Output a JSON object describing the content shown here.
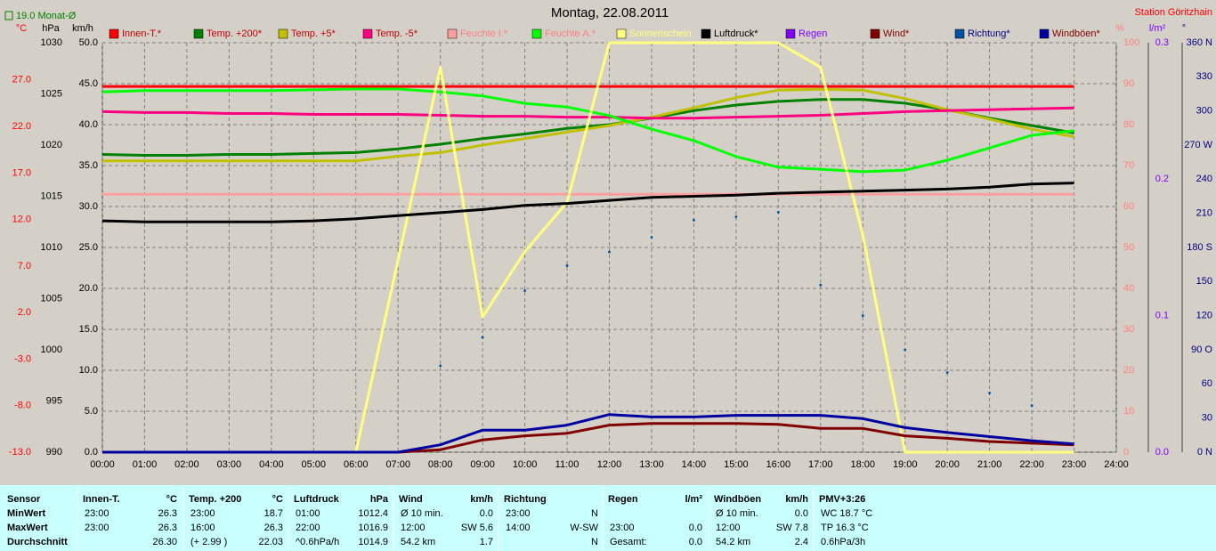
{
  "chart_data": {
    "type": "line",
    "title": "Montag, 22.08.2011",
    "annotation": "19.0 Monat-Ø",
    "station": "Station Göritzhain",
    "x": [
      0,
      1,
      2,
      3,
      4,
      5,
      6,
      7,
      8,
      9,
      10,
      11,
      12,
      13,
      14,
      15,
      16,
      17,
      18,
      19,
      20,
      21,
      22,
      23
    ],
    "xlim": [
      0,
      24
    ],
    "xticks": [
      {
        "value": 0,
        "label": "00:00"
      },
      {
        "value": 1,
        "label": "01:00"
      },
      {
        "value": 2,
        "label": "02:00"
      },
      {
        "value": 3,
        "label": "03:00"
      },
      {
        "value": 4,
        "label": "04:00"
      },
      {
        "value": 5,
        "label": "05:00"
      },
      {
        "value": 6,
        "label": "06:00"
      },
      {
        "value": 7,
        "label": "07:00"
      },
      {
        "value": 8,
        "label": "08:00"
      },
      {
        "value": 9,
        "label": "09:00"
      },
      {
        "value": 10,
        "label": "10:00"
      },
      {
        "value": 11,
        "label": "11:00"
      },
      {
        "value": 12,
        "label": "12:00"
      },
      {
        "value": 13,
        "label": "13:00"
      },
      {
        "value": 14,
        "label": "14:00"
      },
      {
        "value": 15,
        "label": "15:00"
      },
      {
        "value": 16,
        "label": "16:00"
      },
      {
        "value": 17,
        "label": "17:00"
      },
      {
        "value": 18,
        "label": "18:00"
      },
      {
        "value": 19,
        "label": "19:00"
      },
      {
        "value": 20,
        "label": "20:00"
      },
      {
        "value": 21,
        "label": "21:00"
      },
      {
        "value": 22,
        "label": "22:00"
      },
      {
        "value": 23,
        "label": "23:00"
      },
      {
        "value": 24,
        "label": "24:00"
      }
    ],
    "grid": true,
    "axes": [
      {
        "unit": "°C",
        "color": "#ff0000",
        "lim": [
          -13,
          31
        ],
        "ticks": [
          {
            "value": -13,
            "label": "-13.0"
          },
          {
            "value": -8,
            "label": "-8.0"
          },
          {
            "value": -3,
            "label": "-3.0"
          },
          {
            "value": 2,
            "label": "2.0"
          },
          {
            "value": 7,
            "label": "7.0"
          },
          {
            "value": 12,
            "label": "12.0"
          },
          {
            "value": 17,
            "label": "17.0"
          },
          {
            "value": 22,
            "label": "22.0"
          },
          {
            "value": 27,
            "label": "27.0"
          }
        ]
      },
      {
        "unit": "hPa",
        "color": "#000000",
        "lim": [
          990,
          1030
        ],
        "ticks": [
          990,
          995,
          1000,
          1005,
          1010,
          1015,
          1020,
          1025,
          1030
        ]
      },
      {
        "unit": "km/h",
        "color": "#000000",
        "lim": [
          0,
          50
        ],
        "grid": true,
        "ticks": [
          {
            "value": 0,
            "label": "0.0"
          },
          {
            "value": 5,
            "label": "5.0"
          },
          {
            "value": 10,
            "label": "10.0"
          },
          {
            "value": 15,
            "label": "15.0"
          },
          {
            "value": 20,
            "label": "20.0"
          },
          {
            "value": 25,
            "label": "25.0"
          },
          {
            "value": 30,
            "label": "30.0"
          },
          {
            "value": 35,
            "label": "35.0"
          },
          {
            "value": 40,
            "label": "40.0"
          },
          {
            "value": 45,
            "label": "45.0"
          },
          {
            "value": 50,
            "label": "50.0"
          }
        ]
      },
      {
        "unit": "%",
        "color": "#ff8080",
        "lim": [
          0,
          100
        ],
        "ticks": [
          0,
          10,
          20,
          30,
          40,
          50,
          60,
          70,
          80,
          90,
          100
        ]
      },
      {
        "unit": "l/m²",
        "color": "#8000ff",
        "lim": [
          0,
          0.3
        ],
        "ticks": [
          {
            "value": 0,
            "label": "0.0"
          },
          0.1,
          0.2,
          0.3
        ]
      },
      {
        "unit": "°",
        "color": "#000080",
        "lim": [
          0,
          360
        ],
        "ticks": [
          {
            "value": 0,
            "label": "0 N"
          },
          30,
          60,
          {
            "value": 90,
            "label": "90 O"
          },
          120,
          150,
          {
            "value": 180,
            "label": "180 S"
          },
          210,
          240,
          {
            "value": 270,
            "label": "270 W"
          },
          300,
          330,
          {
            "value": 360,
            "label": "360 N"
          }
        ]
      }
    ],
    "series": [
      {
        "name": "Innen-T.*",
        "color": "#ff0000",
        "label_color": "#c00000",
        "axis": "°C",
        "values": [
          26.3,
          26.3,
          26.3,
          26.3,
          26.3,
          26.3,
          26.3,
          26.3,
          26.3,
          26.3,
          26.3,
          26.3,
          26.3,
          26.3,
          26.3,
          26.3,
          26.3,
          26.3,
          26.3,
          26.3,
          26.3,
          26.3,
          26.3,
          26.3
        ]
      },
      {
        "name": "Temp. +200*",
        "color": "#008000",
        "label_color": "#c00000",
        "axis": "°C",
        "values": [
          19.0,
          18.9,
          18.9,
          19.0,
          19.0,
          19.1,
          19.2,
          19.6,
          20.1,
          20.7,
          21.2,
          21.8,
          22.2,
          22.9,
          23.7,
          24.3,
          24.7,
          24.9,
          24.9,
          24.5,
          23.8,
          22.9,
          22.1,
          21.3
        ]
      },
      {
        "name": "Temp. +5*",
        "color": "#c0c000",
        "label_color": "#c00000",
        "axis": "°C",
        "values": [
          18.3,
          18.3,
          18.3,
          18.3,
          18.3,
          18.3,
          18.3,
          18.8,
          19.2,
          20.0,
          20.7,
          21.4,
          22.1,
          23.0,
          24.0,
          25.1,
          25.9,
          26.0,
          25.9,
          25.0,
          23.8,
          22.8,
          21.7,
          20.9
        ]
      },
      {
        "name": "Temp. -5*",
        "color": "#ff0080",
        "label_color": "#c00000",
        "axis": "°C",
        "values": [
          23.6,
          23.5,
          23.5,
          23.4,
          23.4,
          23.3,
          23.3,
          23.3,
          23.2,
          23.1,
          23.1,
          23.0,
          23.0,
          22.9,
          22.9,
          23.0,
          23.1,
          23.2,
          23.4,
          23.6,
          23.7,
          23.8,
          23.9,
          24.0
        ]
      },
      {
        "name": "Feuchte I.*",
        "color": "#ffa0a0",
        "label_color": "#ff8080",
        "axis": "%",
        "values": [
          63,
          63,
          63,
          63,
          63,
          63,
          63,
          63,
          63,
          63,
          63,
          63,
          63,
          63,
          63,
          63,
          63,
          63,
          63,
          63,
          63,
          63,
          63,
          63
        ]
      },
      {
        "name": "Feuchte A.*",
        "color": "#00ff00",
        "label_color": "#ff8080",
        "axis": "%",
        "values": [
          88.0,
          88.3,
          88.3,
          88.3,
          88.3,
          88.5,
          88.7,
          88.7,
          88.0,
          87.0,
          85.2,
          84.3,
          82.2,
          78.9,
          76.1,
          72.2,
          69.6,
          69.1,
          68.5,
          68.9,
          71.3,
          74.3,
          77.4,
          78.5
        ]
      },
      {
        "name": "Sonnenschein",
        "color": "#ffff80",
        "label_color": "#ffff80",
        "axis": "%",
        "values": [
          0,
          0,
          0,
          0,
          0,
          0,
          0,
          47,
          94,
          33,
          49,
          61,
          100,
          100,
          100,
          100,
          100,
          94,
          53,
          0,
          0,
          0,
          0,
          0
        ]
      },
      {
        "name": "Luftdruck*",
        "color": "#000000",
        "label_color": "#000000",
        "axis": "hPa",
        "values": [
          1012.6,
          1012.5,
          1012.5,
          1012.5,
          1012.5,
          1012.6,
          1012.8,
          1013.1,
          1013.4,
          1013.7,
          1014.1,
          1014.3,
          1014.6,
          1014.9,
          1015.0,
          1015.1,
          1015.3,
          1015.4,
          1015.5,
          1015.6,
          1015.7,
          1015.9,
          1016.2,
          1016.3
        ]
      },
      {
        "name": "Regen",
        "color": "#8000ff",
        "label_color": "#8000ff",
        "axis": "l/m²",
        "values": [
          null,
          null,
          null,
          null,
          null,
          null,
          null,
          null,
          null,
          null,
          null,
          null,
          null,
          null,
          null,
          null,
          null,
          null,
          null,
          null,
          null,
          null,
          null,
          null
        ]
      },
      {
        "name": "Wind*",
        "color": "#800000",
        "label_color": "#800000",
        "axis": "km/h",
        "values": [
          0,
          0,
          0,
          0,
          0,
          0,
          0,
          0,
          0.3,
          1.5,
          2.0,
          2.3,
          3.3,
          3.5,
          3.5,
          3.5,
          3.4,
          2.9,
          2.9,
          2.0,
          1.7,
          1.3,
          1.1,
          0.9
        ]
      },
      {
        "name": "Richtung*",
        "color": "#0050a0",
        "label_color": "#000080",
        "axis": "°",
        "style": "dots",
        "values": [
          null,
          null,
          null,
          null,
          null,
          null,
          null,
          null,
          76,
          101,
          142,
          164,
          176,
          189,
          204,
          207,
          211,
          147,
          120,
          90,
          70,
          52,
          41,
          null
        ]
      },
      {
        "name": "Windböen*",
        "color": "#0000a0",
        "label_color": "#800000",
        "axis": "km/h",
        "values": [
          0,
          0,
          0,
          0,
          0,
          0,
          0,
          0,
          0.9,
          2.7,
          2.7,
          3.3,
          4.6,
          4.3,
          4.3,
          4.5,
          4.5,
          4.5,
          4.1,
          3.0,
          2.4,
          1.9,
          1.4,
          1.0
        ]
      }
    ]
  },
  "table": {
    "row_labels": [
      "Sensor",
      "MinWert",
      "MaxWert",
      "Durchschnitt"
    ],
    "columns": [
      {
        "title": "Innen-T.",
        "unit": "°C",
        "rows": [
          [
            "23:00",
            "26.3"
          ],
          [
            "23:00",
            "26.3"
          ],
          [
            null,
            "26.30"
          ]
        ]
      },
      {
        "title": "Temp. +200",
        "unit": "°C",
        "rows": [
          [
            "23:00",
            "18.7"
          ],
          [
            "16:00",
            "26.3"
          ],
          [
            "(+ 2.99 )",
            "22.03"
          ]
        ]
      },
      {
        "title": "Luftdruck",
        "unit": "hPa",
        "rows": [
          [
            "01:00",
            "1012.4"
          ],
          [
            "22:00",
            "1016.9"
          ],
          [
            "^0.6hPa/h",
            "1014.9"
          ]
        ]
      },
      {
        "title": "Wind",
        "unit": "km/h",
        "rows": [
          [
            "Ø 10 min.",
            "0.0"
          ],
          [
            "12:00",
            "SW 5.6"
          ],
          [
            "54.2 km",
            "1.7"
          ]
        ]
      },
      {
        "title": "Richtung",
        "unit": null,
        "rows": [
          [
            "23:00",
            "N"
          ],
          [
            "14:00",
            "W-SW"
          ],
          [
            null,
            "N"
          ]
        ]
      },
      {
        "title": "Regen",
        "unit": "l/m²",
        "rows": [
          [
            null,
            null
          ],
          [
            "23:00",
            "0.0"
          ],
          [
            "Gesamt:",
            "0.0"
          ]
        ]
      },
      {
        "title": "Windböen",
        "unit": "km/h",
        "rows": [
          [
            "Ø 10 min.",
            "0.0"
          ],
          [
            "12:00",
            "SW 7.8"
          ],
          [
            "54.2 km",
            "2.4"
          ]
        ]
      },
      {
        "title": "PMV+3:26",
        "unit": null,
        "rows": [
          [
            "WC 18.7 °C",
            null
          ],
          [
            "TP 16.3 °C",
            null
          ],
          [
            "0.6hPa/3h",
            null
          ]
        ]
      }
    ]
  }
}
